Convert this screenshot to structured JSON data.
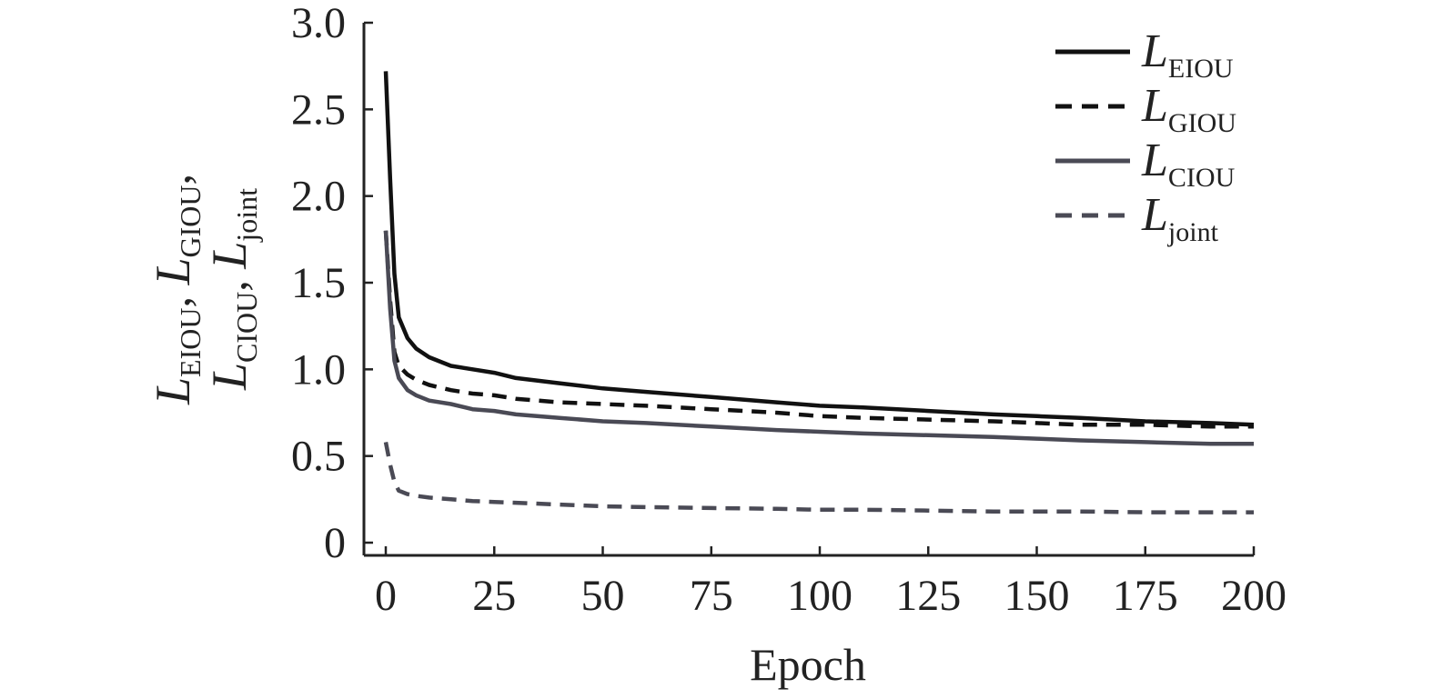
{
  "chart_data": {
    "type": "line",
    "xlabel": "Epoch",
    "ylabel": {
      "line1": [
        {
          "base": "L",
          "sub": "EIOU"
        },
        {
          "base": "L",
          "sub": "GIOU"
        }
      ],
      "line2": [
        {
          "base": "L",
          "sub": "CIOU"
        },
        {
          "base": "L",
          "sub": "joint"
        }
      ]
    },
    "xlim": [
      0,
      200
    ],
    "ylim": [
      0,
      3.0
    ],
    "xticks": [
      "0",
      "25",
      "50",
      "75",
      "100",
      "125",
      "150",
      "175",
      "200"
    ],
    "xtick_values": [
      0,
      25,
      50,
      75,
      100,
      125,
      150,
      175,
      200
    ],
    "yticks": [
      "0",
      "0.5",
      "1.0",
      "1.5",
      "2.0",
      "2.5",
      "3.0"
    ],
    "ytick_values": [
      0,
      0.5,
      1.0,
      1.5,
      2.0,
      2.5,
      3.0
    ],
    "grid": false,
    "legend_position": "top-right",
    "x": [
      0,
      1,
      2,
      3,
      5,
      7,
      10,
      15,
      20,
      25,
      30,
      40,
      50,
      60,
      75,
      90,
      100,
      110,
      125,
      140,
      150,
      160,
      175,
      190,
      200
    ],
    "series": [
      {
        "name": "L_EIOU",
        "base": "L",
        "sub": "EIOU",
        "color": "#111111",
        "dash": "solid",
        "values": [
          2.72,
          2.1,
          1.55,
          1.3,
          1.18,
          1.12,
          1.07,
          1.02,
          1.0,
          0.98,
          0.95,
          0.92,
          0.89,
          0.87,
          0.84,
          0.81,
          0.79,
          0.78,
          0.76,
          0.74,
          0.73,
          0.72,
          0.7,
          0.69,
          0.68
        ]
      },
      {
        "name": "L_GIOU",
        "base": "L",
        "sub": "GIOU",
        "color": "#111111",
        "dash": "dashed",
        "values": [
          1.8,
          1.4,
          1.1,
          1.02,
          0.97,
          0.94,
          0.91,
          0.88,
          0.86,
          0.85,
          0.83,
          0.81,
          0.8,
          0.79,
          0.77,
          0.75,
          0.73,
          0.72,
          0.71,
          0.7,
          0.69,
          0.68,
          0.68,
          0.67,
          0.67
        ]
      },
      {
        "name": "L_CIOU",
        "base": "L",
        "sub": "CIOU",
        "color": "#4a4a55",
        "dash": "solid",
        "values": [
          1.8,
          1.35,
          1.05,
          0.95,
          0.88,
          0.85,
          0.82,
          0.8,
          0.77,
          0.76,
          0.74,
          0.72,
          0.7,
          0.69,
          0.67,
          0.65,
          0.64,
          0.63,
          0.62,
          0.61,
          0.6,
          0.59,
          0.58,
          0.57,
          0.57
        ]
      },
      {
        "name": "L_joint",
        "base": "L",
        "sub": "joint",
        "color": "#4a4a55",
        "dash": "dashed",
        "values": [
          0.58,
          0.45,
          0.35,
          0.3,
          0.28,
          0.27,
          0.26,
          0.25,
          0.24,
          0.235,
          0.23,
          0.22,
          0.21,
          0.205,
          0.2,
          0.195,
          0.19,
          0.19,
          0.185,
          0.18,
          0.18,
          0.18,
          0.175,
          0.175,
          0.175
        ]
      }
    ]
  }
}
